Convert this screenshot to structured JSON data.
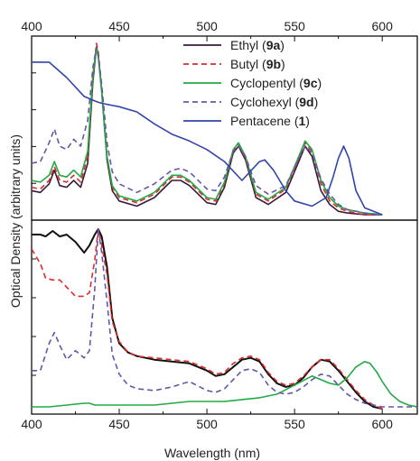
{
  "chart_data": [
    {
      "panel": "top",
      "type": "line",
      "xlim": [
        400,
        620
      ],
      "ylim": [
        0,
        1
      ],
      "x_ticks": [
        400,
        450,
        500,
        550,
        600
      ],
      "x_tick_labels": [
        "400",
        "450",
        "500",
        "550",
        "600"
      ],
      "x_tick_position": "top",
      "ylabel": "Optical Density (arbitrary units)",
      "legend_position": "top-right",
      "series": [
        {
          "name": "Ethyl",
          "tag": "9a",
          "color": "#3a1a3a",
          "dash": "solid",
          "x": [
            400,
            405,
            410,
            413,
            416,
            420,
            424,
            428,
            432,
            435,
            437,
            438,
            440,
            443,
            446,
            450,
            460,
            470,
            480,
            485,
            490,
            500,
            505,
            510,
            515,
            518,
            522,
            528,
            535,
            545,
            552,
            556,
            560,
            565,
            570,
            575,
            580,
            590,
            600
          ],
          "y": [
            0.14,
            0.13,
            0.18,
            0.26,
            0.17,
            0.16,
            0.2,
            0.16,
            0.3,
            0.78,
            0.98,
            0.93,
            0.72,
            0.32,
            0.14,
            0.08,
            0.05,
            0.1,
            0.2,
            0.2,
            0.17,
            0.07,
            0.06,
            0.16,
            0.36,
            0.4,
            0.32,
            0.1,
            0.06,
            0.13,
            0.3,
            0.4,
            0.34,
            0.14,
            0.06,
            0.02,
            0.01,
            0.0,
            0.0
          ]
        },
        {
          "name": "Butyl",
          "tag": "9b",
          "color": "#dd2a2a",
          "dash": "dashed",
          "x": [
            400,
            405,
            410,
            413,
            416,
            420,
            424,
            428,
            432,
            435,
            437,
            438,
            440,
            443,
            446,
            450,
            460,
            470,
            480,
            485,
            490,
            500,
            505,
            510,
            515,
            518,
            522,
            528,
            535,
            545,
            552,
            556,
            560,
            565,
            570,
            575,
            580,
            590,
            600
          ],
          "y": [
            0.16,
            0.15,
            0.2,
            0.28,
            0.2,
            0.19,
            0.23,
            0.19,
            0.34,
            0.8,
            1.0,
            0.95,
            0.74,
            0.34,
            0.16,
            0.1,
            0.07,
            0.12,
            0.22,
            0.22,
            0.19,
            0.09,
            0.08,
            0.18,
            0.37,
            0.41,
            0.33,
            0.12,
            0.08,
            0.15,
            0.32,
            0.42,
            0.37,
            0.18,
            0.08,
            0.04,
            0.02,
            0.0,
            0.0
          ]
        },
        {
          "name": "Cyclopentyl",
          "tag": "9c",
          "color": "#22aa44",
          "dash": "solid",
          "x": [
            400,
            405,
            410,
            413,
            416,
            420,
            424,
            428,
            432,
            435,
            437,
            438,
            440,
            443,
            446,
            450,
            460,
            470,
            480,
            485,
            490,
            500,
            505,
            510,
            515,
            518,
            522,
            528,
            535,
            545,
            552,
            556,
            560,
            565,
            570,
            575,
            580,
            590,
            600
          ],
          "y": [
            0.2,
            0.19,
            0.23,
            0.31,
            0.23,
            0.22,
            0.26,
            0.22,
            0.37,
            0.82,
            0.97,
            0.92,
            0.72,
            0.34,
            0.17,
            0.11,
            0.08,
            0.13,
            0.23,
            0.23,
            0.2,
            0.1,
            0.09,
            0.19,
            0.38,
            0.42,
            0.34,
            0.13,
            0.09,
            0.16,
            0.33,
            0.43,
            0.38,
            0.2,
            0.1,
            0.05,
            0.03,
            0.01,
            0.0
          ]
        },
        {
          "name": "Cyclohexyl",
          "tag": "9d",
          "color": "#6655aa",
          "dash": "dashed",
          "x": [
            400,
            405,
            410,
            413,
            416,
            420,
            424,
            428,
            432,
            435,
            437,
            438,
            440,
            443,
            446,
            450,
            460,
            470,
            480,
            485,
            490,
            500,
            505,
            510,
            515,
            518,
            522,
            528,
            535,
            545,
            552,
            556,
            560,
            565,
            570,
            575,
            580,
            590,
            600
          ],
          "y": [
            0.3,
            0.31,
            0.42,
            0.5,
            0.4,
            0.38,
            0.44,
            0.4,
            0.55,
            0.86,
            0.98,
            0.93,
            0.76,
            0.42,
            0.25,
            0.18,
            0.13,
            0.18,
            0.26,
            0.27,
            0.25,
            0.15,
            0.14,
            0.22,
            0.37,
            0.4,
            0.34,
            0.17,
            0.12,
            0.17,
            0.32,
            0.4,
            0.36,
            0.21,
            0.12,
            0.06,
            0.03,
            0.01,
            0.0
          ]
        },
        {
          "name": "Pentacene",
          "tag": "1",
          "color": "#3344aa",
          "dash": "solid",
          "x": [
            400,
            410,
            420,
            430,
            437,
            440,
            450,
            460,
            470,
            480,
            490,
            500,
            510,
            520,
            530,
            533,
            538,
            545,
            550,
            560,
            568,
            572,
            575,
            578,
            581,
            585,
            590,
            600
          ],
          "y": [
            0.89,
            0.89,
            0.8,
            0.69,
            0.66,
            0.65,
            0.63,
            0.6,
            0.53,
            0.47,
            0.43,
            0.38,
            0.31,
            0.2,
            0.31,
            0.32,
            0.26,
            0.14,
            0.08,
            0.05,
            0.1,
            0.22,
            0.33,
            0.4,
            0.33,
            0.14,
            0.04,
            0.0
          ]
        }
      ]
    },
    {
      "panel": "bottom",
      "type": "line",
      "xlim": [
        400,
        620
      ],
      "ylim": [
        0,
        1
      ],
      "x_ticks": [
        400,
        450,
        500,
        550,
        600
      ],
      "x_tick_labels": [
        "400",
        "450",
        "500",
        "550",
        "600"
      ],
      "x_tick_position": "bottom",
      "xlabel": "Wavelength (nm)",
      "series": [
        {
          "name": "Ethyl",
          "tag": "9a",
          "color": "#111111",
          "dash": "solid",
          "x": [
            400,
            405,
            408,
            412,
            416,
            420,
            425,
            430,
            433,
            436,
            438,
            440,
            443,
            446,
            450,
            455,
            460,
            470,
            480,
            490,
            500,
            505,
            510,
            515,
            520,
            525,
            530,
            535,
            540,
            545,
            550,
            555,
            560,
            565,
            570,
            575,
            580,
            585,
            590,
            595,
            600
          ],
          "y": [
            0.96,
            0.96,
            0.95,
            0.98,
            0.95,
            0.96,
            0.92,
            0.86,
            0.9,
            0.96,
            0.99,
            0.95,
            0.78,
            0.5,
            0.36,
            0.31,
            0.29,
            0.27,
            0.26,
            0.25,
            0.21,
            0.18,
            0.19,
            0.23,
            0.27,
            0.28,
            0.26,
            0.19,
            0.14,
            0.12,
            0.13,
            0.17,
            0.23,
            0.27,
            0.26,
            0.21,
            0.15,
            0.09,
            0.04,
            0.01,
            0.0
          ]
        },
        {
          "name": "Butyl",
          "tag": "9b",
          "color": "#dd2a2a",
          "dash": "dashed",
          "x": [
            400,
            405,
            408,
            412,
            416,
            420,
            425,
            430,
            433,
            436,
            438,
            440,
            443,
            446,
            450,
            455,
            460,
            470,
            480,
            490,
            500,
            505,
            510,
            515,
            520,
            525,
            530,
            535,
            540,
            545,
            550,
            555,
            560,
            565,
            570,
            575,
            580,
            585,
            590,
            595,
            600
          ],
          "y": [
            0.88,
            0.8,
            0.72,
            0.71,
            0.71,
            0.67,
            0.62,
            0.62,
            0.64,
            0.82,
            0.99,
            0.9,
            0.74,
            0.48,
            0.37,
            0.31,
            0.29,
            0.28,
            0.27,
            0.26,
            0.22,
            0.19,
            0.2,
            0.25,
            0.28,
            0.29,
            0.27,
            0.2,
            0.15,
            0.13,
            0.14,
            0.18,
            0.23,
            0.27,
            0.27,
            0.22,
            0.16,
            0.1,
            0.05,
            0.02,
            0.0
          ]
        },
        {
          "name": "Cyclopentyl",
          "tag": "9c",
          "color": "#22aa44",
          "dash": "solid",
          "x": [
            400,
            410,
            420,
            430,
            433,
            436,
            440,
            450,
            460,
            470,
            480,
            490,
            500,
            510,
            520,
            530,
            540,
            550,
            560,
            570,
            575,
            580,
            585,
            590,
            593,
            597,
            600,
            605,
            610,
            615,
            620
          ],
          "y": [
            0.01,
            0.01,
            0.02,
            0.03,
            0.03,
            0.02,
            0.02,
            0.02,
            0.02,
            0.02,
            0.03,
            0.04,
            0.04,
            0.04,
            0.05,
            0.06,
            0.08,
            0.13,
            0.18,
            0.14,
            0.13,
            0.17,
            0.23,
            0.26,
            0.25,
            0.2,
            0.15,
            0.08,
            0.04,
            0.02,
            0.01
          ]
        },
        {
          "name": "Cyclohexyl",
          "tag": "9d",
          "color": "#6655aa",
          "dash": "dashed",
          "x": [
            400,
            405,
            410,
            413,
            416,
            420,
            425,
            430,
            433,
            436,
            438,
            440,
            443,
            446,
            450,
            455,
            460,
            470,
            480,
            490,
            500,
            505,
            510,
            515,
            520,
            525,
            530,
            535,
            540,
            545,
            550,
            555,
            560,
            565,
            570,
            575,
            580,
            585,
            590,
            595,
            600,
            610,
            620
          ],
          "y": [
            0.21,
            0.21,
            0.36,
            0.42,
            0.35,
            0.27,
            0.32,
            0.28,
            0.32,
            0.66,
            0.99,
            0.86,
            0.59,
            0.3,
            0.19,
            0.13,
            0.11,
            0.1,
            0.12,
            0.15,
            0.1,
            0.09,
            0.11,
            0.16,
            0.21,
            0.22,
            0.2,
            0.13,
            0.09,
            0.08,
            0.09,
            0.12,
            0.16,
            0.19,
            0.18,
            0.13,
            0.08,
            0.05,
            0.03,
            0.02,
            0.01,
            0.01,
            0.01
          ]
        }
      ]
    }
  ]
}
